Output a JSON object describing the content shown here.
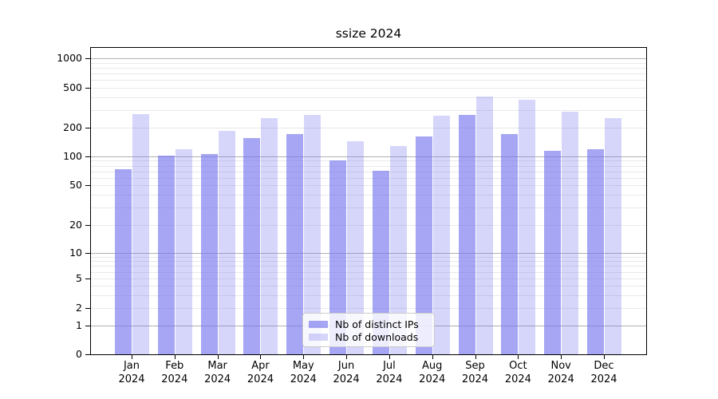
{
  "title": "ssize 2024",
  "chart_data": {
    "type": "bar",
    "title": "ssize 2024",
    "x_months": [
      "Jan",
      "Feb",
      "Mar",
      "Apr",
      "May",
      "Jun",
      "Jul",
      "Aug",
      "Sep",
      "Oct",
      "Nov",
      "Dec"
    ],
    "x_year": "2024",
    "series": [
      {
        "name": "Nb of distinct IPs",
        "values": [
          74,
          101,
          106,
          157,
          172,
          91,
          71,
          163,
          270,
          172,
          114,
          120
        ]
      },
      {
        "name": "Nb of downloads",
        "values": [
          275,
          118,
          186,
          250,
          270,
          145,
          128,
          265,
          410,
          378,
          290,
          250
        ]
      }
    ],
    "yticks": [
      0,
      1,
      2,
      5,
      10,
      20,
      50,
      100,
      200,
      500,
      1000
    ],
    "ylim": [
      0,
      1280
    ],
    "yscale": "log-like (symlog)",
    "grid": true,
    "legend_position": "lower-center"
  },
  "colors": {
    "bar_base": "#7777ee",
    "bar_dark_alpha": 0.65,
    "bar_light_alpha": 0.3,
    "grid_major": "#b0b0b0",
    "grid_minor": "#e9e9e9",
    "axis": "#000000",
    "background": "#ffffff"
  }
}
